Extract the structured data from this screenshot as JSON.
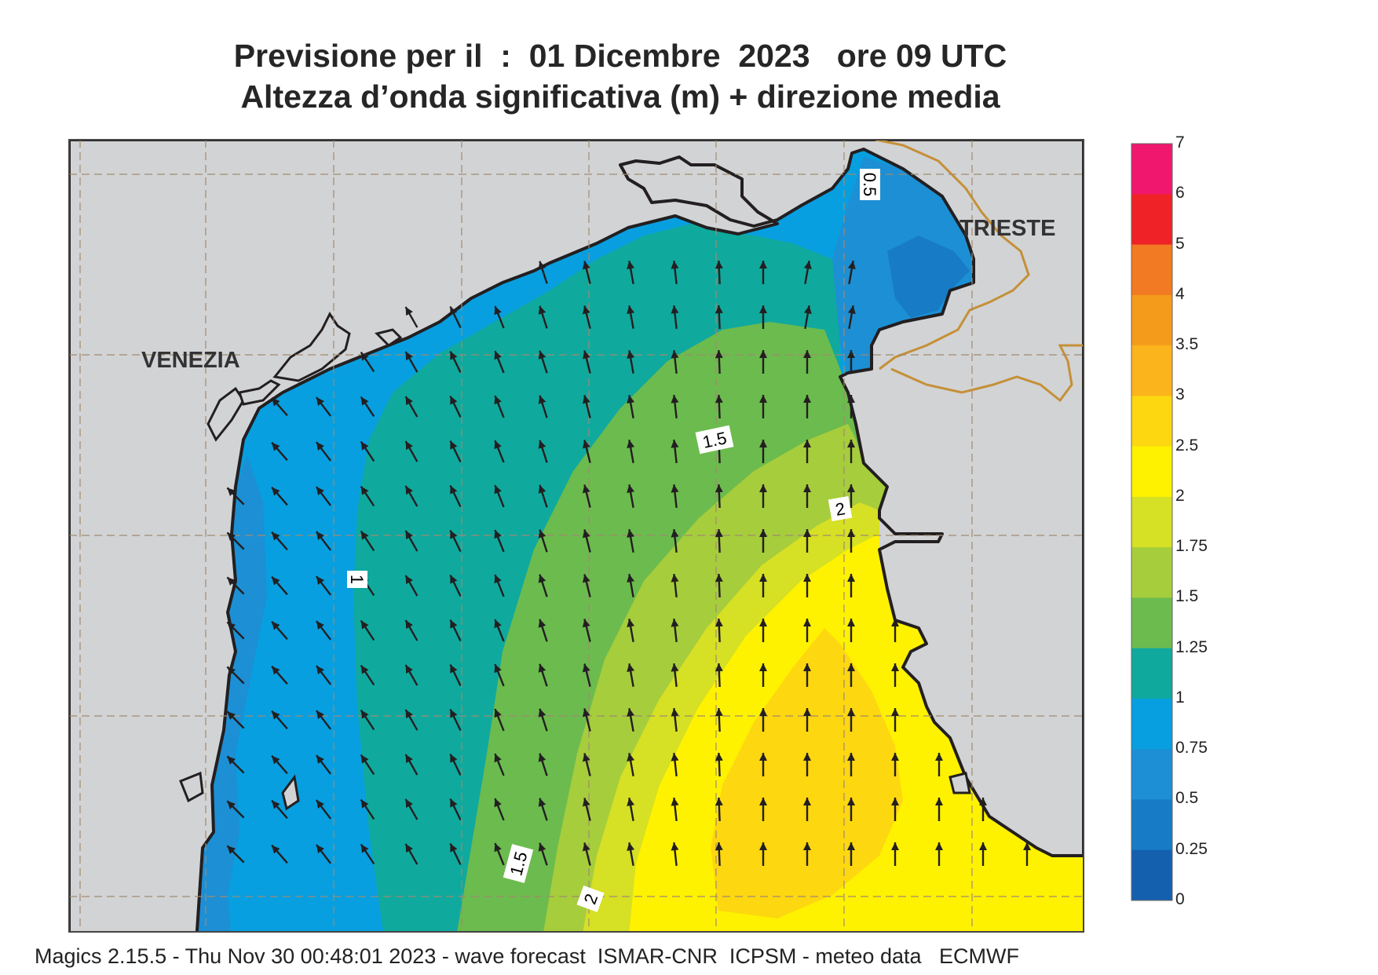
{
  "title_line1": "Previsione per il  :  01 Dicembre  2023   ore 09 UTC",
  "title_line2": "Altezza d’onda significativa (m) + direzione media",
  "footer": "Magics 2.15.5 - Thu Nov 30 00:48:01 2023 - wave forecast  ISMAR-CNR  ICPSM - meteo data   ECMWF",
  "places": [
    {
      "name": "VENEZIA"
    },
    {
      "name": "TRIESTE"
    }
  ],
  "contour_labels": [
    "0.5",
    "1.5",
    "2",
    "1",
    "1.5",
    "2"
  ],
  "colorbar": {
    "levels": [
      "7",
      "6",
      "5",
      "4",
      "3.5",
      "3",
      "2.5",
      "2",
      "1.75",
      "1.5",
      "1.25",
      "1",
      "0.75",
      "0.5",
      "0.25",
      "0"
    ],
    "colors": [
      "#f0176f",
      "#ef2228",
      "#f27a22",
      "#f49b1c",
      "#fbb41c",
      "#fdd70f",
      "#fff200",
      "#d6e024",
      "#a6cd3c",
      "#6cbb4e",
      "#10a99e",
      "#079fe0",
      "#1d8fd4",
      "#187bc5",
      "#1560ae"
    ]
  },
  "colors": {
    "land": "#d2d3d5",
    "coast": "#231f20",
    "border": "#c59038",
    "arrow": "#231f20"
  }
}
